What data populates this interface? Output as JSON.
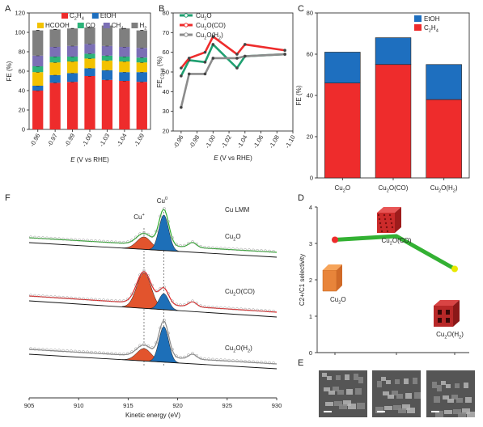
{
  "panels": {
    "A": "A",
    "B": "B",
    "C": "C",
    "D": "D",
    "E": "E",
    "F": "F"
  },
  "chart_data": [
    {
      "id": "A",
      "type": "bar",
      "ylabel": "FE (%)",
      "xlabel_pre": "E",
      "xlabel_post": " (V vs RHE)",
      "ylim": [
        0,
        120
      ],
      "yticks": [
        "0",
        "20",
        "40",
        "60",
        "80",
        "100",
        "120"
      ],
      "categories": [
        "-0.96",
        "-0.97",
        "-0.99",
        "-1.00",
        "-1.03",
        "-1.04",
        "-1.09"
      ],
      "series": [
        {
          "name": "C2H4",
          "color": "#ee2c2c",
          "values": [
            40,
            48,
            49,
            55,
            51,
            50,
            49
          ]
        },
        {
          "name": "EtOH",
          "color": "#1e6fbf",
          "values": [
            5,
            8,
            9,
            8,
            10,
            9,
            10
          ]
        },
        {
          "name": "HCOOH",
          "color": "#f2c200",
          "values": [
            14,
            13,
            12,
            10,
            10,
            11,
            10
          ]
        },
        {
          "name": "CO",
          "color": "#2db37a",
          "values": [
            6,
            6,
            5,
            5,
            5,
            5,
            5
          ]
        },
        {
          "name": "CH4",
          "color": "#7b6fb5",
          "values": [
            11,
            10,
            11,
            10,
            10,
            10,
            10
          ]
        },
        {
          "name": "H2",
          "color": "#7f7f7f",
          "values": [
            26,
            18,
            18,
            17,
            21,
            19,
            18
          ]
        }
      ],
      "legend_rows": [
        [
          {
            "text": "C",
            "sub": "2",
            "text2": "H",
            "sub2": "4",
            "color": "#ee2c2c"
          },
          {
            "text": "EtOH",
            "color": "#1e6fbf"
          }
        ],
        [
          {
            "text": "HCOOH",
            "color": "#f2c200"
          },
          {
            "text": "CO",
            "color": "#2db37a"
          },
          {
            "text": "CH",
            "sub": "4",
            "color": "#7b6fb5"
          },
          {
            "text": "H",
            "sub": "2",
            "color": "#7f7f7f"
          }
        ]
      ]
    },
    {
      "id": "B",
      "type": "line",
      "ylabel_pre": "FE",
      "ylabel_sub": "C2H4",
      "ylabel_post": " (%)",
      "xlabel_pre": "E",
      "xlabel_post": " (V vs RHE)",
      "xlim": [
        -0.95,
        -1.1
      ],
      "ylim": [
        20,
        80
      ],
      "xticks": [
        "-0.96",
        "-0.98",
        "-1.00",
        "-1.02",
        "-1.04",
        "-1.06",
        "-1.08",
        "-1.10"
      ],
      "yticks": [
        "20",
        "30",
        "40",
        "50",
        "60",
        "70",
        "80"
      ],
      "series": [
        {
          "name": "Cu2O",
          "color": "#1fa071",
          "x": [
            -0.96,
            -0.97,
            -0.99,
            -1.0,
            -1.03,
            -1.04,
            -1.09
          ],
          "y": [
            48,
            56,
            55,
            64,
            52,
            58,
            59
          ]
        },
        {
          "name": "Cu2O(CO)",
          "color": "#ee2c2c",
          "x": [
            -0.96,
            -0.97,
            -0.99,
            -1.0,
            -1.03,
            -1.04,
            -1.09
          ],
          "y": [
            52,
            57,
            60,
            68,
            59,
            64,
            61
          ]
        },
        {
          "name": "Cu2O(H2)",
          "color": "#8c8c8c",
          "x": [
            -0.96,
            -0.97,
            -0.99,
            -1.0,
            -1.03,
            -1.04,
            -1.09
          ],
          "y": [
            32,
            49,
            49,
            57,
            57,
            58,
            59
          ]
        }
      ],
      "legend": [
        {
          "text": "Cu",
          "sub": "2",
          "text2": "O",
          "color": "#1fa071"
        },
        {
          "text": "Cu",
          "sub": "2",
          "text2": "O(CO)",
          "color": "#ee2c2c"
        },
        {
          "text": "Cu",
          "sub": "2",
          "text2": "O(H",
          "sub2": "2",
          "text3": ")",
          "color": "#8c8c8c"
        }
      ]
    },
    {
      "id": "C",
      "type": "bar",
      "ylabel": "FE (%)",
      "ylim": [
        0,
        80
      ],
      "yticks": [
        "0",
        "20",
        "40",
        "60",
        "80"
      ],
      "categories": [
        {
          "text": "Cu",
          "sub": "2",
          "text2": "O"
        },
        {
          "text": "Cu",
          "sub": "2",
          "text2": "O(CO)"
        },
        {
          "text": "Cu",
          "sub": "2",
          "text2": "O(H",
          "sub2": "2",
          "text3": ")"
        }
      ],
      "series": [
        {
          "name": "C2H4",
          "color": "#ee2c2c",
          "values": [
            46,
            55,
            38
          ]
        },
        {
          "name": "EtOH",
          "color": "#1e6fbf",
          "values": [
            15,
            13,
            17
          ]
        }
      ],
      "legend": [
        {
          "text": "EtOH",
          "color": "#1e6fbf"
        },
        {
          "text": "C",
          "sub": "2",
          "text2": "H",
          "sub2": "4",
          "color": "#ee2c2c"
        }
      ]
    },
    {
      "id": "D",
      "type": "line",
      "ylabel": "C2+/C1 selectivity",
      "ylim": [
        0,
        4
      ],
      "yticks": [
        "0",
        "1",
        "2",
        "3",
        "4"
      ],
      "points": [
        {
          "label": "Cu2O",
          "value": 3.1
        },
        {
          "label": "Cu2O(CO)",
          "value": 3.2
        },
        {
          "label": "Cu2O(H2)",
          "value": 2.3
        }
      ],
      "point_labels": [
        {
          "text": "Cu",
          "sub": "2",
          "text2": "O"
        },
        {
          "text": "Cu",
          "sub": "2",
          "text2": "O(CO)"
        },
        {
          "text": "Cu",
          "sub": "2",
          "text2": "O(H",
          "sub2": "2",
          "text3": ")"
        }
      ],
      "colors": {
        "line": "#33b133",
        "start": "#ee2c2c",
        "end": "#e8e800"
      }
    },
    {
      "id": "F",
      "type": "line",
      "xlabel": "Kinetic energy (eV)",
      "xlim": [
        905,
        930
      ],
      "xticks": [
        "905",
        "910",
        "915",
        "920",
        "925",
        "930"
      ],
      "annotation": "Cu LMM",
      "peak_labels": [
        {
          "text": "Cu",
          "sup": "+"
        },
        {
          "text": "Cu",
          "sup": "0"
        }
      ],
      "peaks_ev": {
        "Cu+": 916.6,
        "Cu0": 918.6
      },
      "spectra": [
        {
          "name": "Cu2O",
          "label": {
            "text": "Cu",
            "sub": "2",
            "text2": "O"
          },
          "color": "#2eaa2e",
          "cu_plus": 0.35,
          "cu0": 1.0
        },
        {
          "name": "Cu2O(CO)",
          "label": {
            "text": "Cu",
            "sub": "2",
            "text2": "O(CO)"
          },
          "color": "#e02020",
          "cu_plus": 1.0,
          "cu0": 0.45
        },
        {
          "name": "Cu2O(H2)",
          "label": {
            "text": "Cu",
            "sub": "2",
            "text2": "O(H",
            "sub2": "2",
            "text3": ")"
          },
          "color": "#888888",
          "cu_plus": 0.35,
          "cu0": 1.0
        }
      ],
      "fill_colors": {
        "cu_plus": "#e2542d",
        "cu0": "#1d6fb8"
      }
    }
  ]
}
